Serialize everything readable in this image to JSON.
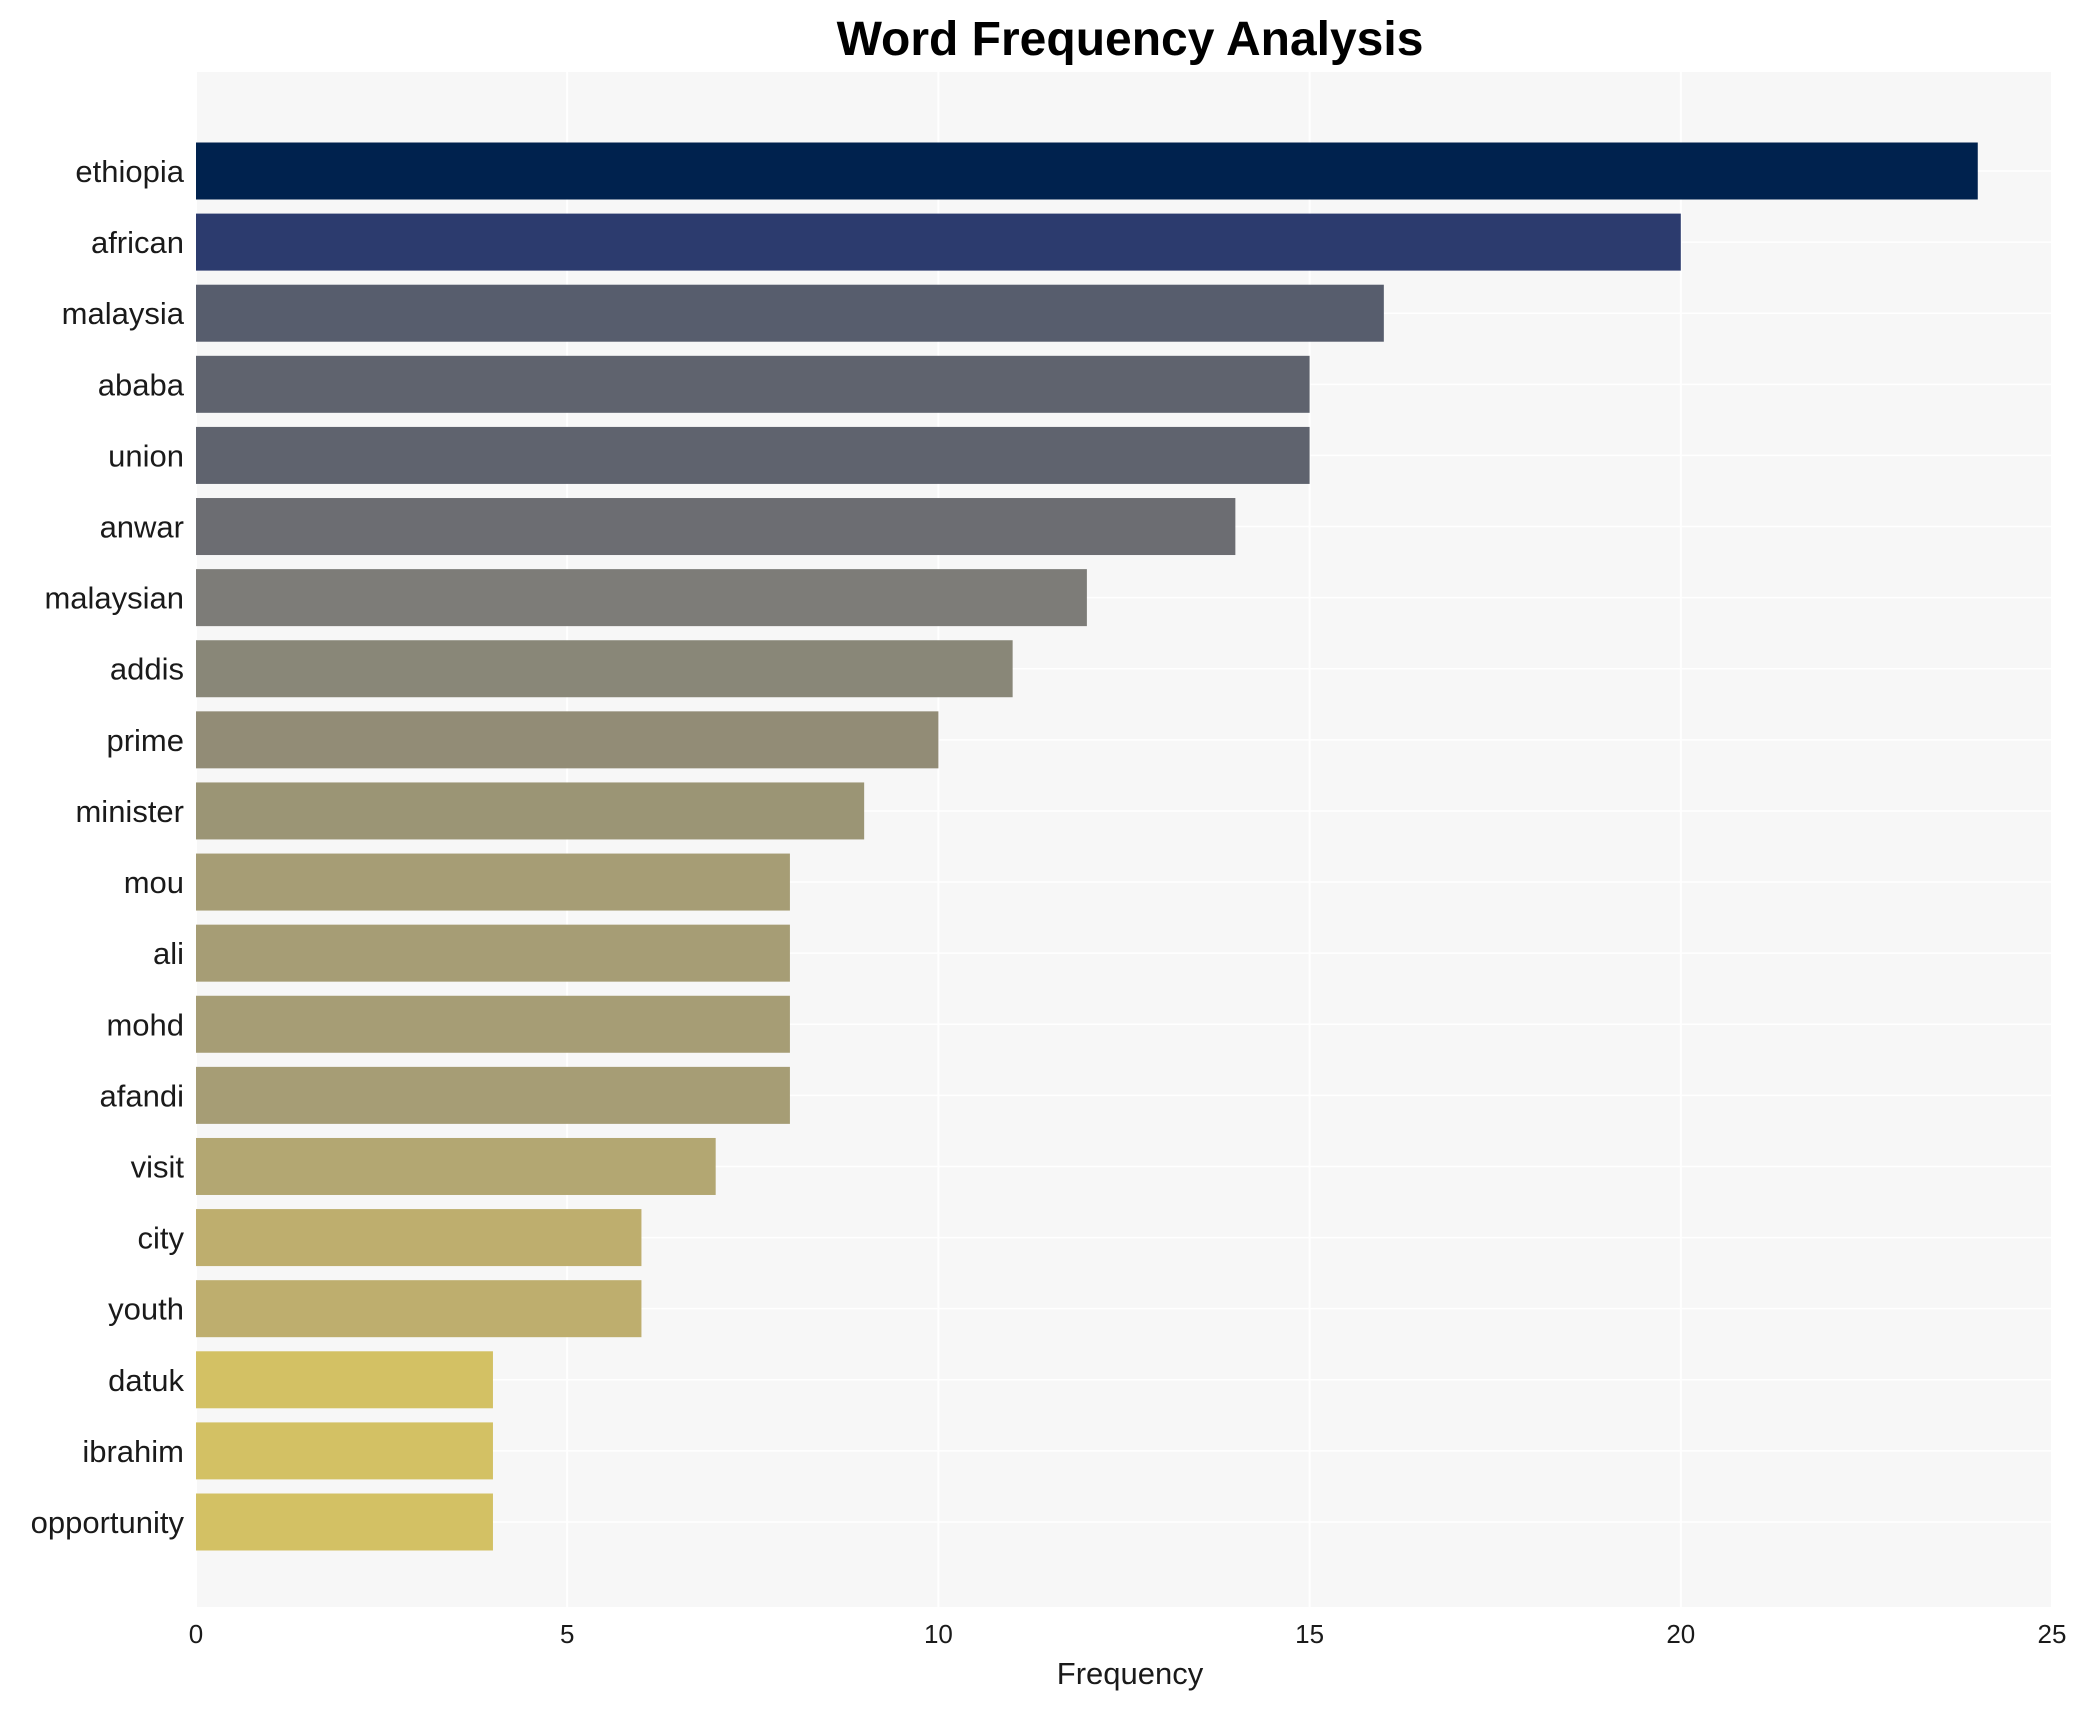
{
  "chart_data": {
    "type": "bar",
    "orientation": "horizontal",
    "title": "Word Frequency Analysis",
    "xlabel": "Frequency",
    "ylabel": "",
    "xlim": [
      0,
      25
    ],
    "xticks": [
      0,
      5,
      10,
      15,
      20,
      25
    ],
    "grid": true,
    "categories": [
      "ethiopia",
      "african",
      "malaysia",
      "ababa",
      "union",
      "anwar",
      "malaysian",
      "addis",
      "prime",
      "minister",
      "mou",
      "ali",
      "mohd",
      "afandi",
      "visit",
      "city",
      "youth",
      "datuk",
      "ibrahim",
      "opportunity"
    ],
    "values": [
      24,
      20,
      16,
      15,
      15,
      14,
      12,
      11,
      10,
      9,
      8,
      8,
      8,
      8,
      7,
      6,
      6,
      4,
      4,
      4
    ],
    "colors": [
      "#00224e",
      "#2c3b6e",
      "#575d6d",
      "#5f636e",
      "#5f636e",
      "#6c6d72",
      "#7d7c78",
      "#898778",
      "#928c76",
      "#9b9575",
      "#a69d75",
      "#a69d75",
      "#a69d75",
      "#a69d75",
      "#b3a772",
      "#beae6e",
      "#beae6e",
      "#d3c164",
      "#d3c164",
      "#d3c164"
    ]
  }
}
